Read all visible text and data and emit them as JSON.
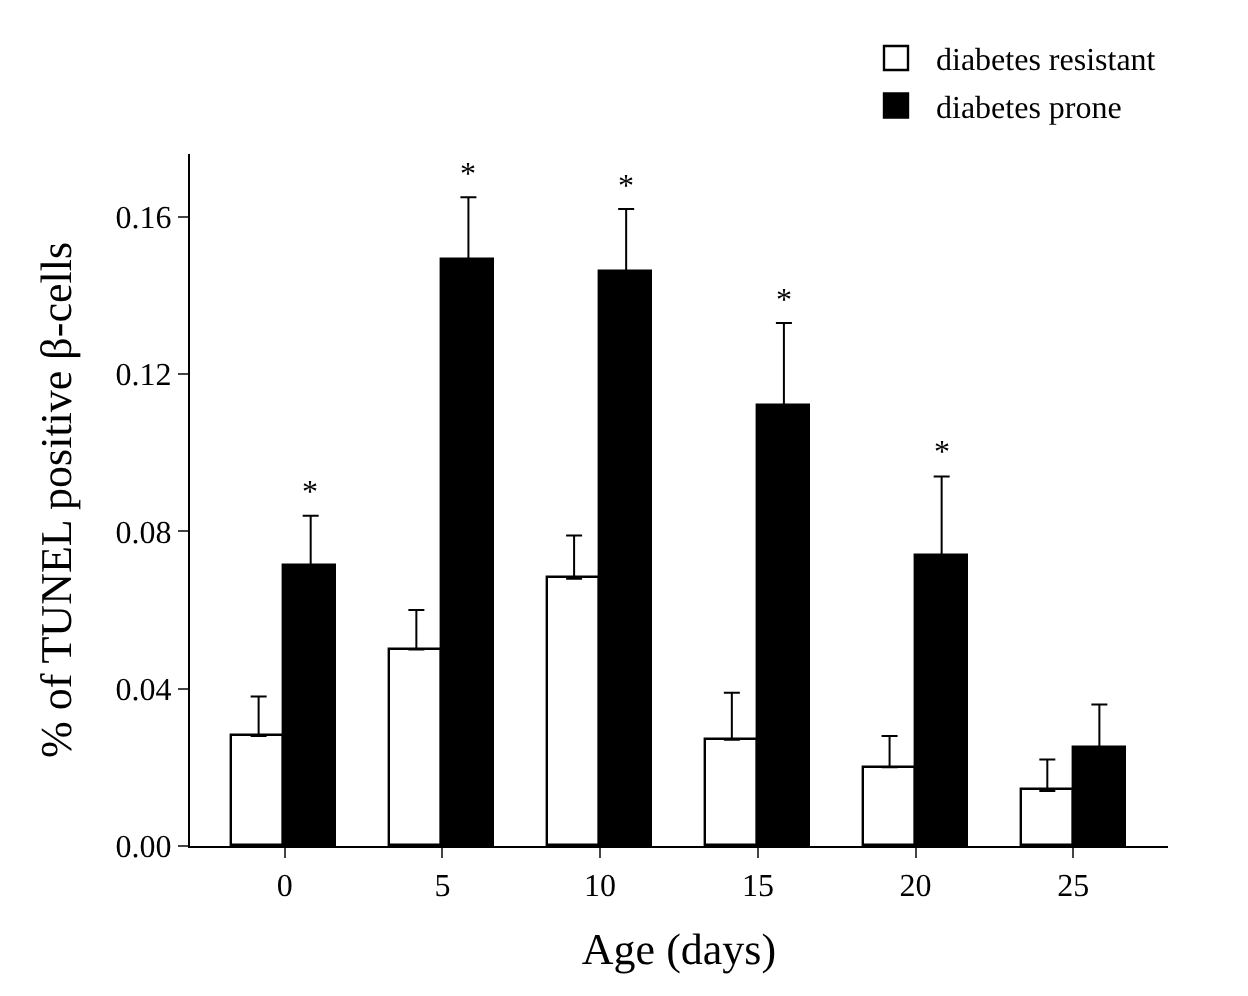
{
  "chart_data": {
    "type": "bar",
    "xlabel": "Age (days)",
    "ylabel": "% of TUNEL positive β-cells",
    "categories": [
      "0",
      "5",
      "10",
      "15",
      "20",
      "25"
    ],
    "series": [
      {
        "name": "diabetes resistant",
        "color": "#ffffff",
        "values": [
          0.028,
          0.05,
          0.068,
          0.027,
          0.02,
          0.014
        ],
        "errors": [
          [
            0.028,
            0.038
          ],
          [
            0.05,
            0.06
          ],
          [
            0.068,
            0.079
          ],
          [
            0.027,
            0.039
          ],
          [
            0.02,
            0.028
          ],
          [
            0.014,
            0.022
          ]
        ]
      },
      {
        "name": "diabetes prone",
        "color": "#000000",
        "values": [
          0.071,
          0.149,
          0.146,
          0.112,
          0.074,
          0.025
        ],
        "errors": [
          [
            0.071,
            0.084
          ],
          [
            0.149,
            0.165
          ],
          [
            0.146,
            0.162
          ],
          [
            0.112,
            0.133
          ],
          [
            0.074,
            0.094
          ],
          [
            0.025,
            0.036
          ]
        ]
      }
    ],
    "ylim": [
      0,
      0.176
    ],
    "yticks": [
      {
        "value": 0,
        "label": "0.00"
      },
      {
        "value": 0.04,
        "label": "0.04"
      },
      {
        "value": 0.08,
        "label": "0.08"
      },
      {
        "value": 0.12,
        "label": "0.12"
      },
      {
        "value": 0.16,
        "label": "0.16"
      }
    ],
    "annotations": [
      "*",
      "*",
      "*",
      "*",
      "*"
    ],
    "legend": "top right"
  }
}
